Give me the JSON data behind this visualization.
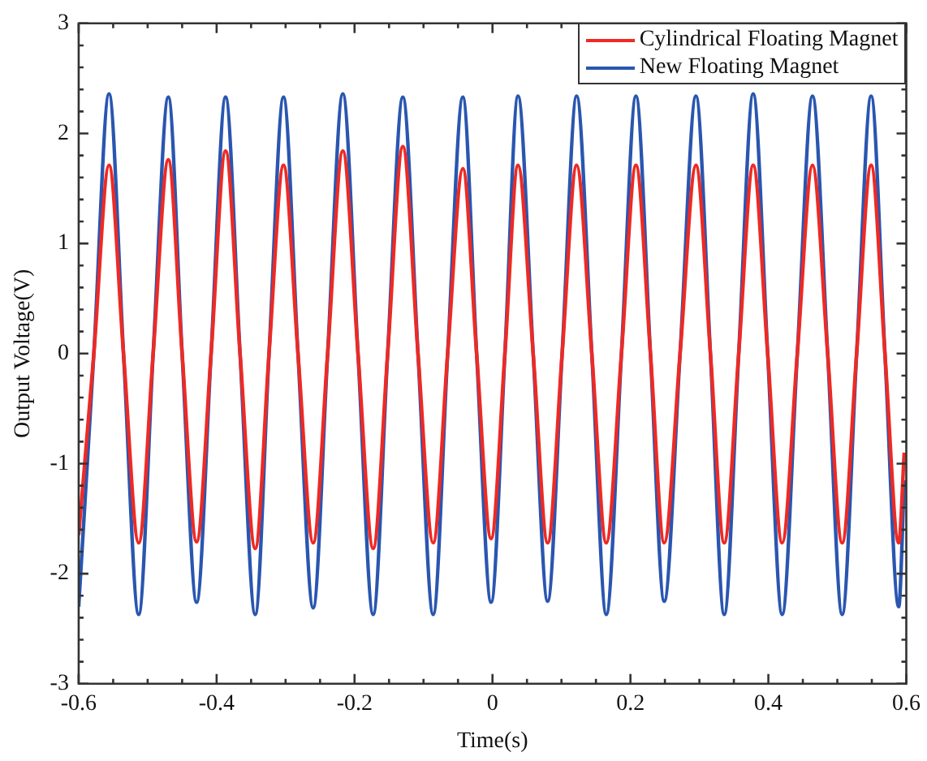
{
  "chart_data": {
    "type": "line",
    "xlabel": "Time(s)",
    "ylabel": "Output Voltage(V)",
    "xlim": [
      -0.6,
      0.6
    ],
    "xticks": [
      -0.6,
      -0.4,
      -0.2,
      0,
      0.2,
      0.4,
      0.6
    ],
    "ylim": [
      -3,
      3
    ],
    "yticks": [
      -3,
      -2,
      -1,
      0,
      1,
      2,
      3
    ],
    "grid": false,
    "legend": "top right",
    "marker": "none",
    "line_style": "solid",
    "x": [
      -0.6,
      -0.578,
      -0.556,
      -0.535,
      -0.513,
      -0.492,
      -0.47,
      -0.45,
      -0.429,
      -0.408,
      -0.387,
      -0.366,
      -0.344,
      -0.324,
      -0.303,
      -0.282,
      -0.26,
      -0.239,
      -0.217,
      -0.195,
      -0.173,
      -0.152,
      -0.13,
      -0.108,
      -0.086,
      -0.065,
      -0.043,
      -0.023,
      -0.002,
      0.018,
      0.037,
      0.059,
      0.08,
      0.101,
      0.122,
      0.144,
      0.165,
      0.187,
      0.208,
      0.229,
      0.249,
      0.272,
      0.295,
      0.316,
      0.336,
      0.357,
      0.378,
      0.399,
      0.42,
      0.442,
      0.464,
      0.486,
      0.507,
      0.528,
      0.549,
      0.569,
      0.589,
      0.597
    ],
    "series": [
      {
        "name": "Cylindrical Floating Magnet",
        "color": "#ee2a24",
        "values": [
          -1.65,
          0,
          1.71,
          0,
          -1.72,
          0,
          1.76,
          0,
          -1.71,
          0,
          1.84,
          0,
          -1.77,
          0,
          1.71,
          0,
          -1.72,
          0,
          1.84,
          0,
          -1.77,
          0,
          1.88,
          0,
          -1.72,
          0,
          1.68,
          0,
          -1.68,
          0,
          1.71,
          0,
          -1.72,
          0,
          1.71,
          0,
          -1.72,
          0,
          1.71,
          0,
          -1.72,
          0,
          1.71,
          0,
          -1.72,
          0,
          1.71,
          0,
          -1.72,
          0,
          1.71,
          0,
          -1.72,
          0,
          1.71,
          0,
          -1.72,
          -0.9
        ]
      },
      {
        "name": "New Floating Magnet",
        "color": "#2a56b0",
        "values": [
          -2.3,
          0,
          2.36,
          0,
          -2.37,
          0,
          2.33,
          0,
          -2.26,
          0,
          2.33,
          0,
          -2.37,
          0,
          2.33,
          0,
          -2.31,
          0,
          2.36,
          0,
          -2.37,
          0,
          2.33,
          0,
          -2.37,
          0,
          2.33,
          0,
          -2.26,
          0,
          2.34,
          0,
          -2.25,
          0,
          2.34,
          0,
          -2.37,
          0,
          2.34,
          0,
          -2.25,
          0,
          2.34,
          0,
          -2.37,
          0,
          2.36,
          0,
          -2.37,
          0,
          2.34,
          0,
          -2.37,
          0,
          2.34,
          0,
          -2.3,
          -1.15
        ]
      }
    ]
  }
}
